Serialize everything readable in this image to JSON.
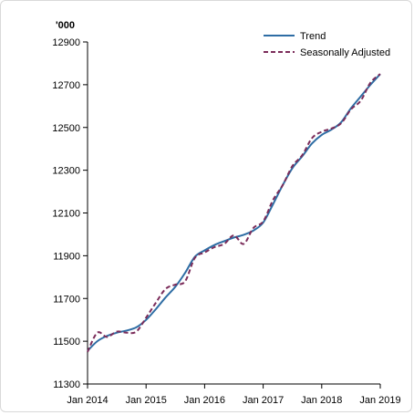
{
  "chart_data": {
    "type": "line",
    "unit_label": "'000",
    "ylim": [
      11300,
      12900
    ],
    "y_ticks": [
      11300,
      11500,
      11700,
      11900,
      12100,
      12300,
      12500,
      12700,
      12900
    ],
    "x_range": [
      "2014-01",
      "2019-01"
    ],
    "x_ticks": [
      {
        "date": "2014-01",
        "label": "Jan 2014"
      },
      {
        "date": "2015-01",
        "label": "Jan 2015"
      },
      {
        "date": "2016-01",
        "label": "Jan 2016"
      },
      {
        "date": "2017-01",
        "label": "Jan 2017"
      },
      {
        "date": "2018-01",
        "label": "Jan 2018"
      },
      {
        "date": "2019-01",
        "label": "Jan 2019"
      }
    ],
    "grid": false,
    "legend_position": "top-right",
    "series": [
      {
        "name": "Trend",
        "color": "#2e6da4",
        "style": "solid",
        "points": [
          [
            "2014-01",
            11455
          ],
          [
            "2014-03",
            11500
          ],
          [
            "2014-05",
            11525
          ],
          [
            "2014-07",
            11540
          ],
          [
            "2014-09",
            11550
          ],
          [
            "2014-11",
            11565
          ],
          [
            "2015-01",
            11600
          ],
          [
            "2015-03",
            11650
          ],
          [
            "2015-05",
            11705
          ],
          [
            "2015-07",
            11755
          ],
          [
            "2015-09",
            11820
          ],
          [
            "2015-11",
            11895
          ],
          [
            "2016-01",
            11925
          ],
          [
            "2016-03",
            11950
          ],
          [
            "2016-05",
            11968
          ],
          [
            "2016-07",
            11985
          ],
          [
            "2016-09",
            11998
          ],
          [
            "2016-11",
            12018
          ],
          [
            "2017-01",
            12055
          ],
          [
            "2017-03",
            12140
          ],
          [
            "2017-05",
            12230
          ],
          [
            "2017-07",
            12310
          ],
          [
            "2017-09",
            12365
          ],
          [
            "2017-11",
            12425
          ],
          [
            "2018-01",
            12465
          ],
          [
            "2018-03",
            12490
          ],
          [
            "2018-05",
            12525
          ],
          [
            "2018-07",
            12590
          ],
          [
            "2018-09",
            12645
          ],
          [
            "2018-11",
            12700
          ],
          [
            "2019-01",
            12750
          ]
        ]
      },
      {
        "name": "Seasonally Adjusted",
        "color": "#7b2c5a",
        "style": "dashed",
        "points": [
          [
            "2014-01",
            11450
          ],
          [
            "2014-03",
            11540
          ],
          [
            "2014-05",
            11520
          ],
          [
            "2014-07",
            11545
          ],
          [
            "2014-09",
            11540
          ],
          [
            "2014-11",
            11545
          ],
          [
            "2015-01",
            11610
          ],
          [
            "2015-03",
            11680
          ],
          [
            "2015-05",
            11745
          ],
          [
            "2015-07",
            11765
          ],
          [
            "2015-09",
            11780
          ],
          [
            "2015-11",
            11890
          ],
          [
            "2016-01",
            11915
          ],
          [
            "2016-03",
            11940
          ],
          [
            "2016-05",
            11955
          ],
          [
            "2016-07",
            11995
          ],
          [
            "2016-09",
            11955
          ],
          [
            "2016-11",
            12030
          ],
          [
            "2017-01",
            12060
          ],
          [
            "2017-03",
            12160
          ],
          [
            "2017-05",
            12230
          ],
          [
            "2017-07",
            12320
          ],
          [
            "2017-09",
            12370
          ],
          [
            "2017-11",
            12450
          ],
          [
            "2018-01",
            12480
          ],
          [
            "2018-03",
            12495
          ],
          [
            "2018-05",
            12520
          ],
          [
            "2018-07",
            12585
          ],
          [
            "2018-09",
            12625
          ],
          [
            "2018-11",
            12710
          ],
          [
            "2019-01",
            12750
          ]
        ]
      }
    ]
  }
}
